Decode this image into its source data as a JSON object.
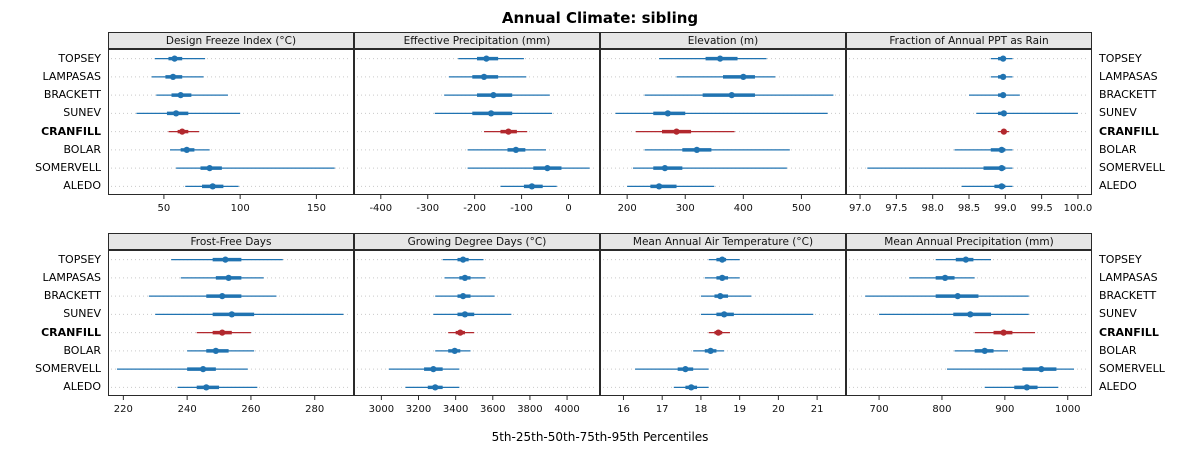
{
  "title": "Annual Climate: sibling",
  "caption": "5th-25th-50th-75th-95th Percentiles",
  "sites": [
    "TOPSEY",
    "LAMPASAS",
    "BRACKETT",
    "SUNEV",
    "CRANFILL",
    "BOLAR",
    "SOMERVELL",
    "ALEDO"
  ],
  "highlight_site": "CRANFILL",
  "colors": {
    "series": "#2073b1",
    "highlight": "#b2282e",
    "strip_bg": "#e6e6e6",
    "panel_border": "#2a2a2a",
    "gridline": "#c9c9c9"
  },
  "chart_data": [
    {
      "type": "scatter",
      "subtype": "percentile-intervals",
      "title": "Design Freeze Index (°C)",
      "percentile_labels": [
        "5th",
        "25th",
        "50th",
        "75th",
        "95th"
      ],
      "xlim": [
        14,
        174
      ],
      "ticks": [
        50,
        100,
        150
      ],
      "tick_labels": [
        "50",
        "100",
        "150"
      ],
      "series": {
        "TOPSEY": [
          44,
          53,
          57,
          62,
          77
        ],
        "LAMPASAS": [
          42,
          51,
          56,
          62,
          76
        ],
        "BRACKETT": [
          45,
          55,
          61,
          68,
          92
        ],
        "SUNEV": [
          32,
          52,
          58,
          66,
          100
        ],
        "CRANFILL": [
          53,
          59,
          62,
          66,
          73
        ],
        "BOLAR": [
          54,
          61,
          65,
          70,
          80
        ],
        "SOMERVELL": [
          58,
          74,
          80,
          88,
          162
        ],
        "ALEDO": [
          64,
          75,
          82,
          89,
          99
        ]
      }
    },
    {
      "type": "scatter",
      "subtype": "percentile-intervals",
      "title": "Effective Precipitation (mm)",
      "percentile_labels": [
        "5th",
        "25th",
        "50th",
        "75th",
        "95th"
      ],
      "xlim": [
        -455,
        65
      ],
      "ticks": [
        -400,
        -300,
        -200,
        -100,
        0
      ],
      "tick_labels": [
        "-400",
        "-300",
        "-200",
        "-100",
        "0"
      ],
      "series": {
        "TOPSEY": [
          -235,
          -195,
          -175,
          -150,
          -95
        ],
        "LAMPASAS": [
          -255,
          -205,
          -180,
          -150,
          -90
        ],
        "BRACKETT": [
          -265,
          -195,
          -160,
          -120,
          -40
        ],
        "SUNEV": [
          -285,
          -205,
          -165,
          -120,
          -35
        ],
        "CRANFILL": [
          -180,
          -145,
          -128,
          -110,
          -88
        ],
        "BOLAR": [
          -215,
          -130,
          -112,
          -92,
          -48
        ],
        "SOMERVELL": [
          -215,
          -75,
          -45,
          -15,
          45
        ],
        "ALEDO": [
          -145,
          -95,
          -78,
          -55,
          -25
        ]
      }
    },
    {
      "type": "scatter",
      "subtype": "percentile-intervals",
      "title": "Elevation (m)",
      "percentile_labels": [
        "5th",
        "25th",
        "50th",
        "75th",
        "95th"
      ],
      "xlim": [
        155,
        575
      ],
      "ticks": [
        200,
        300,
        400,
        500
      ],
      "tick_labels": [
        "200",
        "300",
        "400",
        "500"
      ],
      "series": {
        "TOPSEY": [
          255,
          335,
          360,
          390,
          440
        ],
        "LAMPASAS": [
          285,
          365,
          400,
          420,
          455
        ],
        "BRACKETT": [
          230,
          330,
          380,
          420,
          555
        ],
        "SUNEV": [
          180,
          245,
          270,
          300,
          545
        ],
        "CRANFILL": [
          215,
          260,
          285,
          310,
          385
        ],
        "BOLAR": [
          230,
          295,
          320,
          345,
          480
        ],
        "SOMERVELL": [
          210,
          245,
          265,
          295,
          475
        ],
        "ALEDO": [
          200,
          240,
          255,
          285,
          350
        ]
      }
    },
    {
      "type": "scatter",
      "subtype": "percentile-intervals",
      "title": "Fraction of Annual PPT as Rain",
      "percentile_labels": [
        "5th",
        "25th",
        "50th",
        "75th",
        "95th"
      ],
      "xlim": [
        96.82,
        100.18
      ],
      "ticks": [
        97.0,
        97.5,
        98.0,
        98.5,
        99.0,
        99.5,
        100.0
      ],
      "tick_labels": [
        "97.0",
        "97.5",
        "98.0",
        "98.5",
        "99.0",
        "99.5",
        "100.0"
      ],
      "series": {
        "TOPSEY": [
          98.8,
          98.9,
          98.97,
          99.0,
          99.1
        ],
        "LAMPASAS": [
          98.8,
          98.9,
          98.97,
          99.0,
          99.1
        ],
        "BRACKETT": [
          98.5,
          98.9,
          98.97,
          99.0,
          99.2
        ],
        "SUNEV": [
          98.6,
          98.9,
          98.98,
          99.0,
          100.0
        ],
        "CRANFILL": [
          98.9,
          98.95,
          98.98,
          99.0,
          99.05
        ],
        "BOLAR": [
          98.3,
          98.8,
          98.95,
          99.0,
          99.1
        ],
        "SOMERVELL": [
          97.1,
          98.7,
          98.95,
          99.0,
          99.1
        ],
        "ALEDO": [
          98.4,
          98.85,
          98.95,
          99.0,
          99.1
        ]
      }
    },
    {
      "type": "scatter",
      "subtype": "percentile-intervals",
      "title": "Frost-Free Days",
      "percentile_labels": [
        "5th",
        "25th",
        "50th",
        "75th",
        "95th"
      ],
      "xlim": [
        215.5,
        292
      ],
      "ticks": [
        220,
        240,
        260,
        280
      ],
      "tick_labels": [
        "220",
        "240",
        "260",
        "280"
      ],
      "series": {
        "TOPSEY": [
          235,
          248,
          252,
          257,
          270
        ],
        "LAMPASAS": [
          238,
          249,
          253,
          257,
          264
        ],
        "BRACKETT": [
          228,
          246,
          251,
          257,
          268
        ],
        "SUNEV": [
          230,
          248,
          254,
          261,
          289
        ],
        "CRANFILL": [
          243,
          248,
          251,
          254,
          260
        ],
        "BOLAR": [
          240,
          246,
          249,
          253,
          261
        ],
        "SOMERVELL": [
          218,
          240,
          245,
          249,
          259
        ],
        "ALEDO": [
          237,
          243,
          246,
          250,
          262
        ]
      }
    },
    {
      "type": "scatter",
      "subtype": "percentile-intervals",
      "title": "Growing Degree Days (°C)",
      "percentile_labels": [
        "5th",
        "25th",
        "50th",
        "75th",
        "95th"
      ],
      "xlim": [
        2858,
        4172
      ],
      "ticks": [
        3000,
        3200,
        3400,
        3600,
        3800,
        4000
      ],
      "tick_labels": [
        "3000",
        "3200",
        "3400",
        "3600",
        "3800",
        "4000"
      ],
      "series": {
        "TOPSEY": [
          3330,
          3410,
          3440,
          3470,
          3550
        ],
        "LAMPASAS": [
          3340,
          3420,
          3450,
          3480,
          3560
        ],
        "BRACKETT": [
          3290,
          3410,
          3440,
          3480,
          3610
        ],
        "SUNEV": [
          3280,
          3410,
          3450,
          3500,
          3700
        ],
        "CRANFILL": [
          3360,
          3400,
          3425,
          3450,
          3500
        ],
        "BOLAR": [
          3290,
          3360,
          3395,
          3425,
          3480
        ],
        "SOMERVELL": [
          3040,
          3230,
          3280,
          3330,
          3420
        ],
        "ALEDO": [
          3130,
          3250,
          3290,
          3330,
          3420
        ]
      }
    },
    {
      "type": "scatter",
      "subtype": "percentile-intervals",
      "title": "Mean Annual Air Temperature (°C)",
      "percentile_labels": [
        "5th",
        "25th",
        "50th",
        "75th",
        "95th"
      ],
      "xlim": [
        15.42,
        21.72
      ],
      "ticks": [
        16,
        17,
        18,
        19,
        20,
        21
      ],
      "tick_labels": [
        "16",
        "17",
        "18",
        "19",
        "20",
        "21"
      ],
      "series": {
        "TOPSEY": [
          18.2,
          18.4,
          18.55,
          18.65,
          19.0
        ],
        "LAMPASAS": [
          18.1,
          18.4,
          18.55,
          18.7,
          19.0
        ],
        "BRACKETT": [
          18.0,
          18.35,
          18.5,
          18.7,
          19.3
        ],
        "SUNEV": [
          18.0,
          18.4,
          18.6,
          18.85,
          20.9
        ],
        "CRANFILL": [
          18.2,
          18.35,
          18.45,
          18.55,
          18.75
        ],
        "BOLAR": [
          17.8,
          18.1,
          18.25,
          18.4,
          18.6
        ],
        "SOMERVELL": [
          16.3,
          17.4,
          17.6,
          17.8,
          18.2
        ],
        "ALEDO": [
          17.3,
          17.6,
          17.75,
          17.9,
          18.2
        ]
      }
    },
    {
      "type": "scatter",
      "subtype": "percentile-intervals",
      "title": "Mean Annual Precipitation (mm)",
      "percentile_labels": [
        "5th",
        "25th",
        "50th",
        "75th",
        "95th"
      ],
      "xlim": [
        649,
        1037
      ],
      "ticks": [
        700,
        800,
        900,
        1000
      ],
      "tick_labels": [
        "700",
        "800",
        "900",
        "1000"
      ],
      "series": {
        "TOPSEY": [
          790,
          822,
          838,
          850,
          878
        ],
        "LAMPASAS": [
          748,
          790,
          805,
          820,
          852
        ],
        "BRACKETT": [
          678,
          790,
          825,
          858,
          938
        ],
        "SUNEV": [
          700,
          818,
          845,
          878,
          938
        ],
        "CRANFILL": [
          852,
          882,
          898,
          912,
          948
        ],
        "BOLAR": [
          820,
          852,
          868,
          882,
          905
        ],
        "SOMERVELL": [
          808,
          928,
          958,
          982,
          1010
        ],
        "ALEDO": [
          868,
          915,
          935,
          952,
          985
        ]
      }
    }
  ]
}
